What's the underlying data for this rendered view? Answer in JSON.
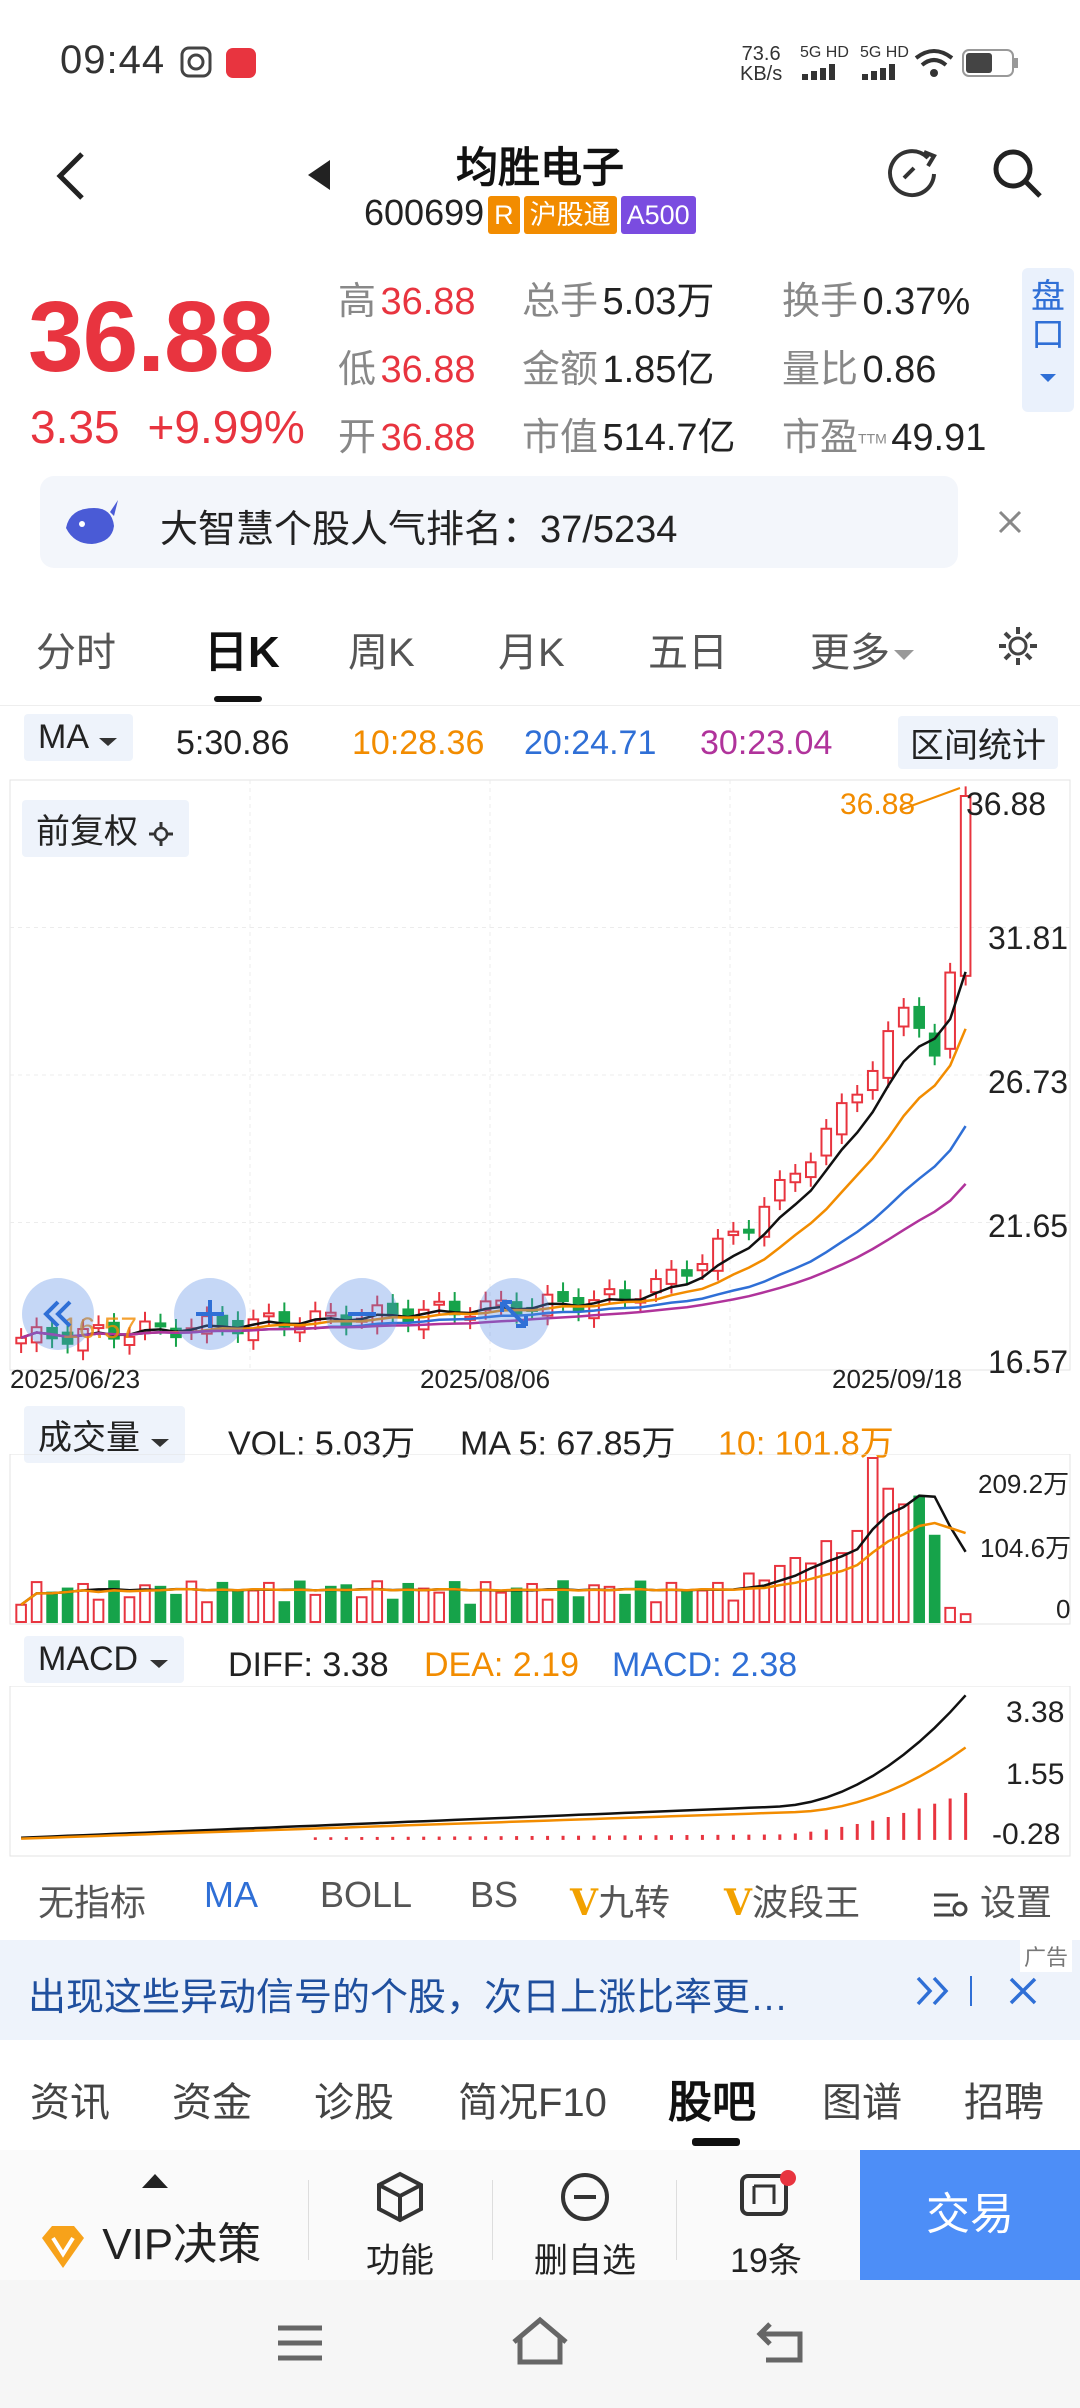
{
  "status_bar": {
    "time": "09:44",
    "net_speed_top": "73.6",
    "net_speed_bottom": "KB/s",
    "sig1": "5G HD",
    "sig2": "5G HD"
  },
  "header": {
    "title": "均胜电子",
    "code": "600699",
    "tag_r": "R",
    "tag_hgt": "沪股通",
    "tag_a500": "A500"
  },
  "quote": {
    "price": "36.88",
    "change": "3.35",
    "change_pct": "+9.99%",
    "high_label": "高",
    "high": "36.88",
    "low_label": "低",
    "low": "36.88",
    "open_label": "开",
    "open": "36.88",
    "vol_label": "总手",
    "vol": "5.03万",
    "amt_label": "金额",
    "amt": "1.85亿",
    "cap_label": "市值",
    "cap": "514.7亿",
    "turn_label": "换手",
    "turn": "0.37%",
    "ratio_label": "量比",
    "ratio": "0.86",
    "pe_label": "市盈",
    "pe_sup": "TTM",
    "pe": "49.91",
    "side_button": "盘口"
  },
  "rank": {
    "text": "大智慧个股人气排名：37/5234"
  },
  "tabs": [
    "分时",
    "日K",
    "周K",
    "月K",
    "五日",
    "更多"
  ],
  "ma_bar": {
    "select": "MA",
    "ma5": "5:30.86",
    "ma10": "10:28.36",
    "ma20": "20:24.71",
    "ma30": "30:23.04",
    "range_btn": "区间统计"
  },
  "chart": {
    "adjust_label": "前复权",
    "y_labels": [
      "36.88",
      "31.81",
      "26.73",
      "21.65",
      "16.57"
    ],
    "x_labels": [
      "2025/06/23",
      "2025/08/06",
      "2025/09/18"
    ],
    "max_marker": "36.88",
    "min_marker": "16.57"
  },
  "volume": {
    "select": "成交量",
    "vol": "VOL: 5.03万",
    "ma5": "MA 5: 67.85万",
    "ma10": "10: 101.8万",
    "y_labels": [
      "209.2万",
      "104.6万",
      "0"
    ]
  },
  "macd": {
    "select": "MACD",
    "diff": "DIFF: 3.38",
    "dea": "DEA: 2.19",
    "macd": "MACD: 2.38",
    "y_labels": [
      "3.38",
      "1.55",
      "-0.28"
    ]
  },
  "indicators": [
    "无指标",
    "MA",
    "BOLL",
    "BS",
    "九转",
    "波段王",
    "设置"
  ],
  "ad": {
    "text": "出现这些异动信号的个股，次日上涨比率更…",
    "tag": "广告"
  },
  "bottom_tabs": [
    "资讯",
    "资金",
    "诊股",
    "简况F10",
    "股吧",
    "图谱",
    "招聘"
  ],
  "actions": {
    "vip": "VIP决策",
    "func": "功能",
    "del": "删自选",
    "ask": "19条",
    "trade": "交易"
  },
  "colors": {
    "up": "#e8343f",
    "down": "#16a34a",
    "ma5": "#111111",
    "ma10": "#f28c00",
    "ma20": "#2f6fd6",
    "ma30": "#b0339b"
  }
}
